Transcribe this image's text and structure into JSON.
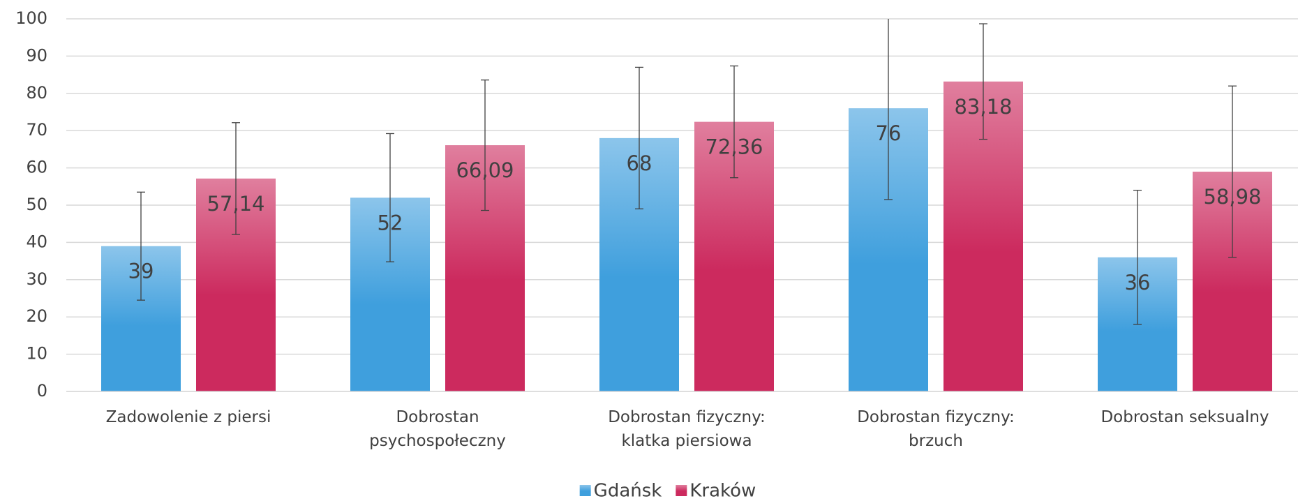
{
  "chart_data": {
    "type": "bar",
    "categories": [
      "Zadowolenie z piersi",
      "Dobrostan psychospołeczny",
      "Dobrostan fizyczny: klatka piersiowa",
      "Dobrostan fizyczny: brzuch",
      "Dobrostan seksualny"
    ],
    "series": [
      {
        "name": "Gdańsk",
        "color": "#3f9fdd",
        "values": [
          39,
          52,
          68,
          76,
          36
        ],
        "value_labels": [
          "39",
          "52",
          "68",
          "76",
          "36"
        ],
        "errors": [
          14.5,
          17.2,
          19,
          24.5,
          18
        ]
      },
      {
        "name": "Kraków",
        "color": "#cc2a5e",
        "values": [
          57.14,
          66.09,
          72.36,
          83.18,
          58.98
        ],
        "value_labels": [
          "57,14",
          "66,09",
          "72,36",
          "83,18",
          "58,98"
        ],
        "errors": [
          15,
          17.5,
          15,
          15.5,
          23
        ]
      }
    ],
    "ylim": [
      0,
      100
    ],
    "yticks": [
      0,
      10,
      20,
      30,
      40,
      50,
      60,
      70,
      80,
      90,
      100
    ],
    "grid": true,
    "legend": "bottom"
  }
}
